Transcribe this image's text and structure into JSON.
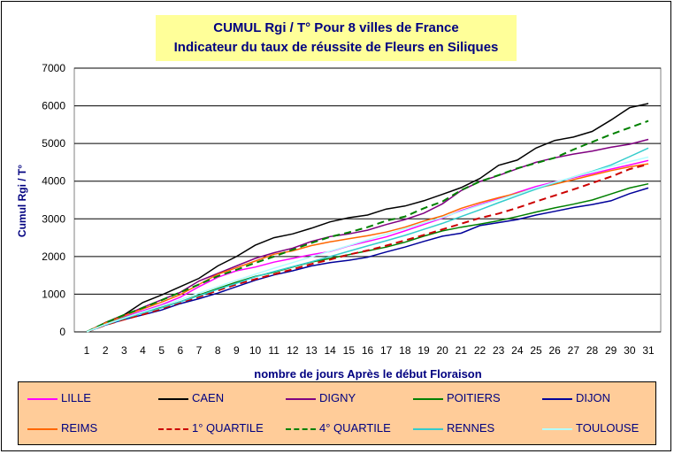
{
  "chart_data": {
    "type": "line",
    "title": "CUMUL Rgi / T° Pour 8 villes de France",
    "subtitle": "Indicateur du taux de réussite de Fleurs en Siliques",
    "xlabel": "nombre de jours Après le début Floraison",
    "ylabel": "Cumul Rgi / T°",
    "ylim": [
      0,
      7000
    ],
    "yticks": [
      0,
      1000,
      2000,
      3000,
      4000,
      5000,
      6000,
      7000
    ],
    "x": [
      1,
      2,
      3,
      4,
      5,
      6,
      7,
      8,
      9,
      10,
      11,
      12,
      13,
      14,
      15,
      16,
      17,
      18,
      19,
      20,
      21,
      22,
      23,
      24,
      25,
      26,
      27,
      28,
      29,
      30,
      31
    ],
    "grid": "horizontal",
    "legend_position": "bottom",
    "series": [
      {
        "name": "LILLE",
        "color": "#ff00ff",
        "dash": "solid",
        "values": [
          0,
          220,
          400,
          560,
          720,
          920,
          1200,
          1450,
          1620,
          1720,
          1850,
          1950,
          2050,
          2130,
          2280,
          2400,
          2520,
          2680,
          2850,
          3020,
          3220,
          3380,
          3530,
          3700,
          3860,
          3980,
          4090,
          4200,
          4320,
          4430,
          4550
        ]
      },
      {
        "name": "CAEN",
        "color": "#000000",
        "dash": "solid",
        "values": [
          0,
          250,
          450,
          780,
          980,
          1200,
          1420,
          1750,
          2000,
          2300,
          2500,
          2600,
          2750,
          2920,
          3030,
          3100,
          3260,
          3340,
          3480,
          3650,
          3830,
          4070,
          4420,
          4560,
          4880,
          5080,
          5170,
          5320,
          5620,
          5950,
          6060
        ]
      },
      {
        "name": "DIGNY",
        "color": "#800080",
        "dash": "solid",
        "values": [
          0,
          230,
          430,
          650,
          850,
          1050,
          1350,
          1550,
          1750,
          1950,
          2100,
          2220,
          2400,
          2530,
          2600,
          2700,
          2850,
          2980,
          3150,
          3400,
          3750,
          3990,
          4150,
          4330,
          4500,
          4620,
          4720,
          4800,
          4900,
          4980,
          5110
        ]
      },
      {
        "name": "POITIERS",
        "color": "#008000",
        "dash": "solid",
        "values": [
          0,
          200,
          380,
          520,
          650,
          800,
          980,
          1150,
          1320,
          1470,
          1580,
          1720,
          1850,
          1950,
          2050,
          2150,
          2250,
          2380,
          2540,
          2680,
          2780,
          2860,
          2950,
          3060,
          3180,
          3290,
          3390,
          3500,
          3660,
          3820,
          3930
        ]
      },
      {
        "name": "DIJON",
        "color": "#000099",
        "dash": "solid",
        "values": [
          0,
          180,
          330,
          450,
          580,
          750,
          880,
          1030,
          1200,
          1370,
          1510,
          1620,
          1750,
          1840,
          1900,
          1980,
          2120,
          2250,
          2400,
          2540,
          2620,
          2820,
          2900,
          2980,
          3100,
          3200,
          3300,
          3380,
          3480,
          3670,
          3820
        ]
      },
      {
        "name": "REIMS",
        "color": "#ff6600",
        "dash": "solid",
        "values": [
          0,
          240,
          430,
          610,
          790,
          990,
          1260,
          1530,
          1700,
          1880,
          2060,
          2150,
          2290,
          2390,
          2470,
          2550,
          2650,
          2780,
          2940,
          3080,
          3280,
          3430,
          3560,
          3680,
          3810,
          3920,
          4040,
          4160,
          4280,
          4380,
          4460
        ]
      },
      {
        "name": "1° QUARTILE",
        "color": "#cc0000",
        "dash": "dashed",
        "values": [
          0,
          180,
          330,
          460,
          610,
          780,
          930,
          1100,
          1260,
          1400,
          1530,
          1660,
          1800,
          1920,
          2050,
          2160,
          2290,
          2430,
          2570,
          2720,
          2870,
          3020,
          3140,
          3290,
          3460,
          3620,
          3780,
          3950,
          4120,
          4320,
          4450
        ]
      },
      {
        "name": "4° QUARTILE",
        "color": "#008000",
        "dash": "dashed",
        "values": [
          0,
          240,
          450,
          640,
          840,
          1050,
          1260,
          1480,
          1650,
          1830,
          2000,
          2180,
          2360,
          2520,
          2640,
          2780,
          2950,
          3060,
          3280,
          3460,
          3760,
          3990,
          4160,
          4340,
          4480,
          4620,
          4840,
          5040,
          5240,
          5420,
          5600
        ]
      },
      {
        "name": "RENNES",
        "color": "#33cccc",
        "dash": "solid",
        "values": [
          0,
          190,
          350,
          500,
          640,
          800,
          960,
          1130,
          1290,
          1460,
          1600,
          1730,
          1860,
          2000,
          2140,
          2280,
          2420,
          2560,
          2720,
          2880,
          3060,
          3240,
          3430,
          3610,
          3790,
          3950,
          4110,
          4260,
          4430,
          4650,
          4880
        ]
      },
      {
        "name": "TOULOUSE",
        "color": "#b3ffff",
        "dash": "solid",
        "values": [
          0,
          200,
          370,
          530,
          690,
          860,
          1030,
          1200,
          1370,
          1530,
          1690,
          1840,
          1990,
          2140,
          2290,
          2440,
          2590,
          2740,
          2890,
          3040,
          3200,
          3360,
          3510,
          3660,
          3820,
          3970,
          4110,
          4250,
          4390,
          4520,
          4640
        ]
      }
    ]
  }
}
